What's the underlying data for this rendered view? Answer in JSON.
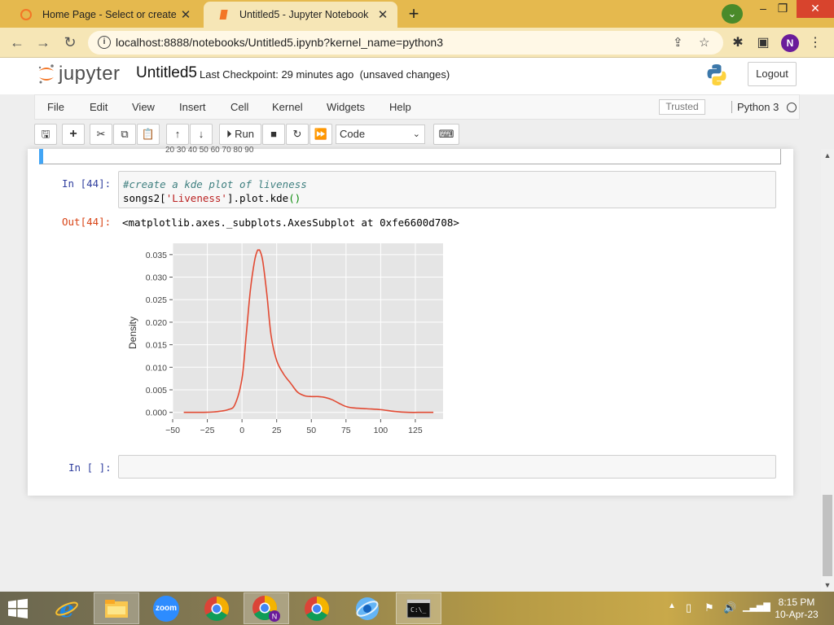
{
  "browser": {
    "tabs": [
      {
        "title": "Home Page - Select or create a notebook",
        "active": false
      },
      {
        "title": "Untitled5 - Jupyter Notebook",
        "active": true
      }
    ],
    "url": "localhost:8888/notebooks/Untitled5.ipynb?kernel_name=python3",
    "profile_initial": "N"
  },
  "jupyter": {
    "logo_text": "jupyter",
    "notebook_name": "Untitled5",
    "checkpoint": "Last Checkpoint: 29 minutes ago",
    "save_status": "(unsaved changes)",
    "logout_label": "Logout",
    "menu": [
      "File",
      "Edit",
      "View",
      "Insert",
      "Cell",
      "Kernel",
      "Widgets",
      "Help"
    ],
    "trusted_label": "Trusted",
    "kernel_name": "Python 3",
    "toolbar": {
      "run_label": "Run",
      "cell_type": "Code"
    }
  },
  "notebook": {
    "prev_cell_ticks": "20 30 40 50 60 70 80 90",
    "cells": [
      {
        "in_prompt": "In [44]:",
        "code_comment": "#create a kde plot of liveness",
        "code_prefix": "songs2[",
        "code_string": "'Liveness'",
        "code_middle": "].plot.kde",
        "code_parens": "()",
        "out_prompt": "Out[44]:",
        "output_text": "<matplotlib.axes._subplots.AxesSubplot at 0xfe6600d708>"
      },
      {
        "in_prompt": "In [ ]:"
      }
    ]
  },
  "chart_data": {
    "type": "line",
    "title": "",
    "xlabel": "",
    "ylabel": "Density",
    "xlim": [
      -50,
      145
    ],
    "ylim": [
      -0.0015,
      0.0375
    ],
    "x_ticks": [
      -50,
      -25,
      0,
      25,
      50,
      75,
      100,
      125
    ],
    "x_tick_labels": [
      "−50",
      "−25",
      "0",
      "25",
      "50",
      "75",
      "100",
      "125"
    ],
    "y_ticks": [
      0.0,
      0.005,
      0.01,
      0.015,
      0.02,
      0.025,
      0.03,
      0.035
    ],
    "y_tick_labels": [
      "0.000",
      "0.005",
      "0.010",
      "0.015",
      "0.020",
      "0.025",
      "0.030",
      "0.035"
    ],
    "grid": true,
    "background": "#e5e5e5",
    "line_color": "#e24a33",
    "series": [
      {
        "x": [
          -42,
          -30,
          -20,
          -10,
          -5,
          0,
          3,
          6,
          9,
          11,
          12,
          13,
          15,
          18,
          21,
          25,
          30,
          35,
          40,
          45,
          50,
          55,
          60,
          65,
          70,
          75,
          80,
          90,
          100,
          110,
          120,
          130,
          138
        ],
        "y": [
          0.0,
          0.0,
          0.0001,
          0.0006,
          0.0018,
          0.0075,
          0.017,
          0.027,
          0.0335,
          0.0358,
          0.036,
          0.0358,
          0.0335,
          0.026,
          0.017,
          0.0115,
          0.0085,
          0.0065,
          0.0045,
          0.0037,
          0.0035,
          0.0035,
          0.0033,
          0.0028,
          0.002,
          0.0013,
          0.001,
          0.0008,
          0.0006,
          0.0002,
          0.0,
          0.0,
          0.0
        ]
      }
    ]
  },
  "taskbar": {
    "clock_time": "8:15 PM",
    "clock_date": "10-Apr-23",
    "zoom_label": "zoom"
  }
}
